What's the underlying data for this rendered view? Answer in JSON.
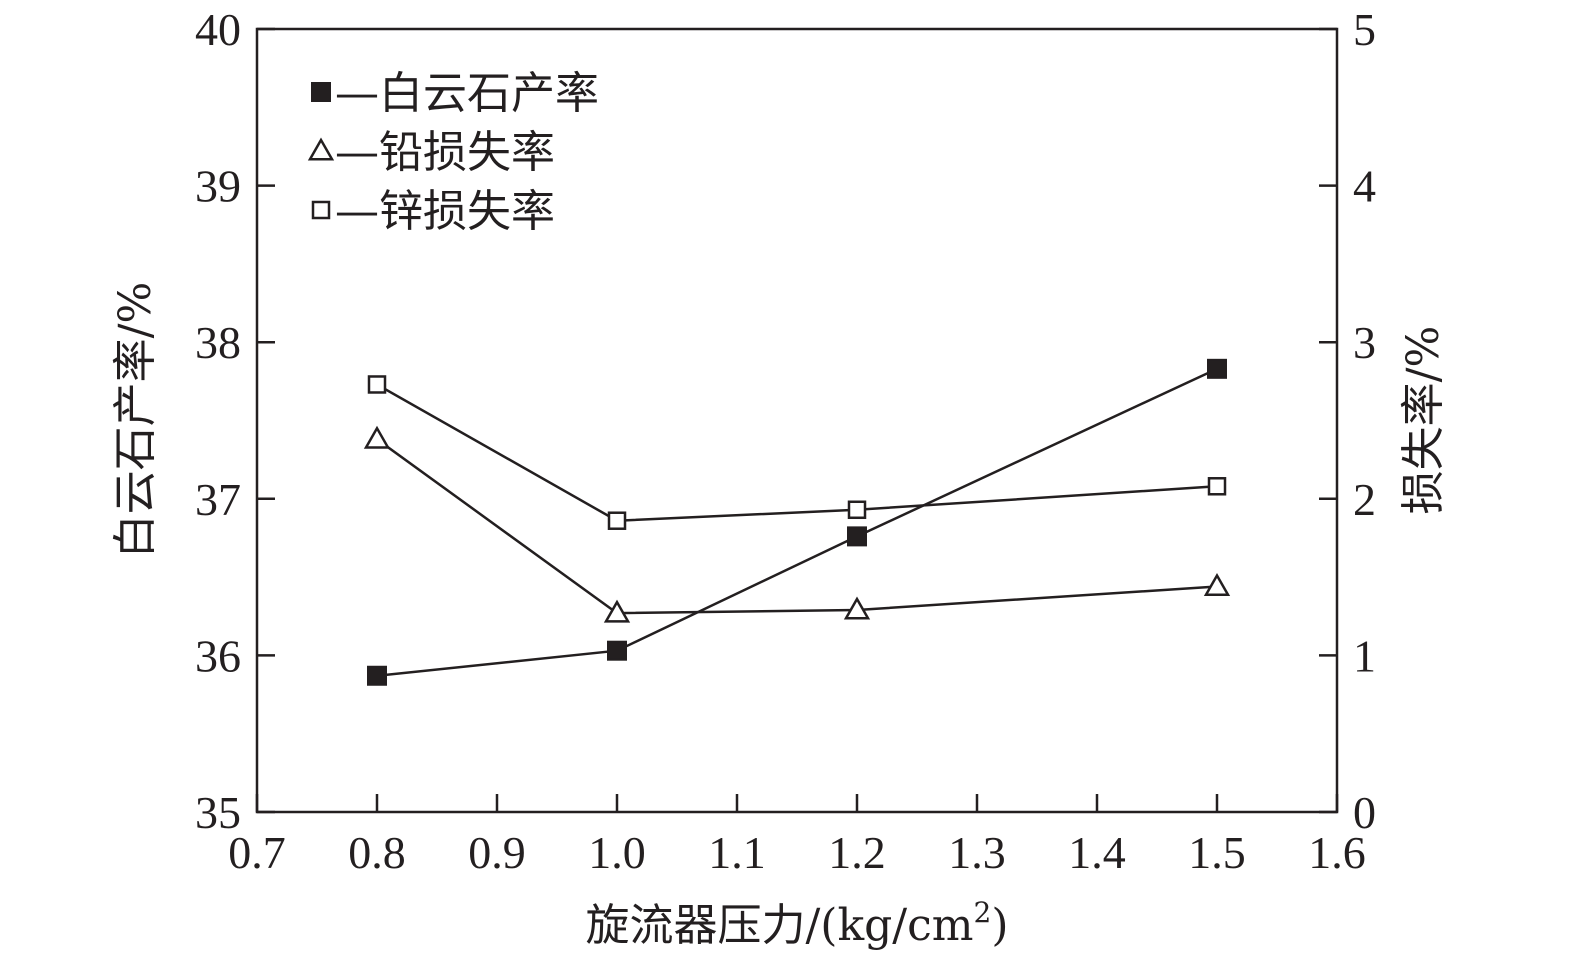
{
  "chart_data": {
    "type": "line",
    "x_axis": {
      "label": "旋流器压力/(kg/cm",
      "label_sup": "2",
      "label_end": ")",
      "range": [
        0.7,
        1.6
      ],
      "ticks": [
        "0.7",
        "0.8",
        "0.9",
        "1.0",
        "1.1",
        "1.2",
        "1.3",
        "1.4",
        "1.5",
        "1.6"
      ]
    },
    "y_left": {
      "label": "白云石产率/%",
      "range": [
        35,
        40
      ],
      "ticks": [
        "35",
        "36",
        "37",
        "38",
        "39",
        "40"
      ]
    },
    "y_right": {
      "label": "损失率/%",
      "range": [
        0,
        5
      ],
      "ticks": [
        "0",
        "1",
        "2",
        "3",
        "4",
        "5"
      ]
    },
    "grid": false,
    "legend_position": "top-left",
    "series": [
      {
        "name": "—白云石产率",
        "marker": "filled-square",
        "axis": "left",
        "x": [
          0.8,
          1.0,
          1.2,
          1.5
        ],
        "values": [
          35.87,
          36.03,
          36.76,
          37.83
        ]
      },
      {
        "name": "—铅损失率",
        "marker": "open-triangle",
        "axis": "right",
        "x": [
          0.8,
          1.0,
          1.2,
          1.5
        ],
        "values": [
          2.38,
          1.27,
          1.29,
          1.44
        ]
      },
      {
        "name": "—锌损失率",
        "marker": "open-square",
        "axis": "right",
        "x": [
          0.8,
          1.0,
          1.2,
          1.5
        ],
        "values": [
          2.73,
          1.86,
          1.93,
          2.08
        ]
      }
    ],
    "colors": {
      "ink": "#231f20",
      "background": "#ffffff"
    }
  }
}
